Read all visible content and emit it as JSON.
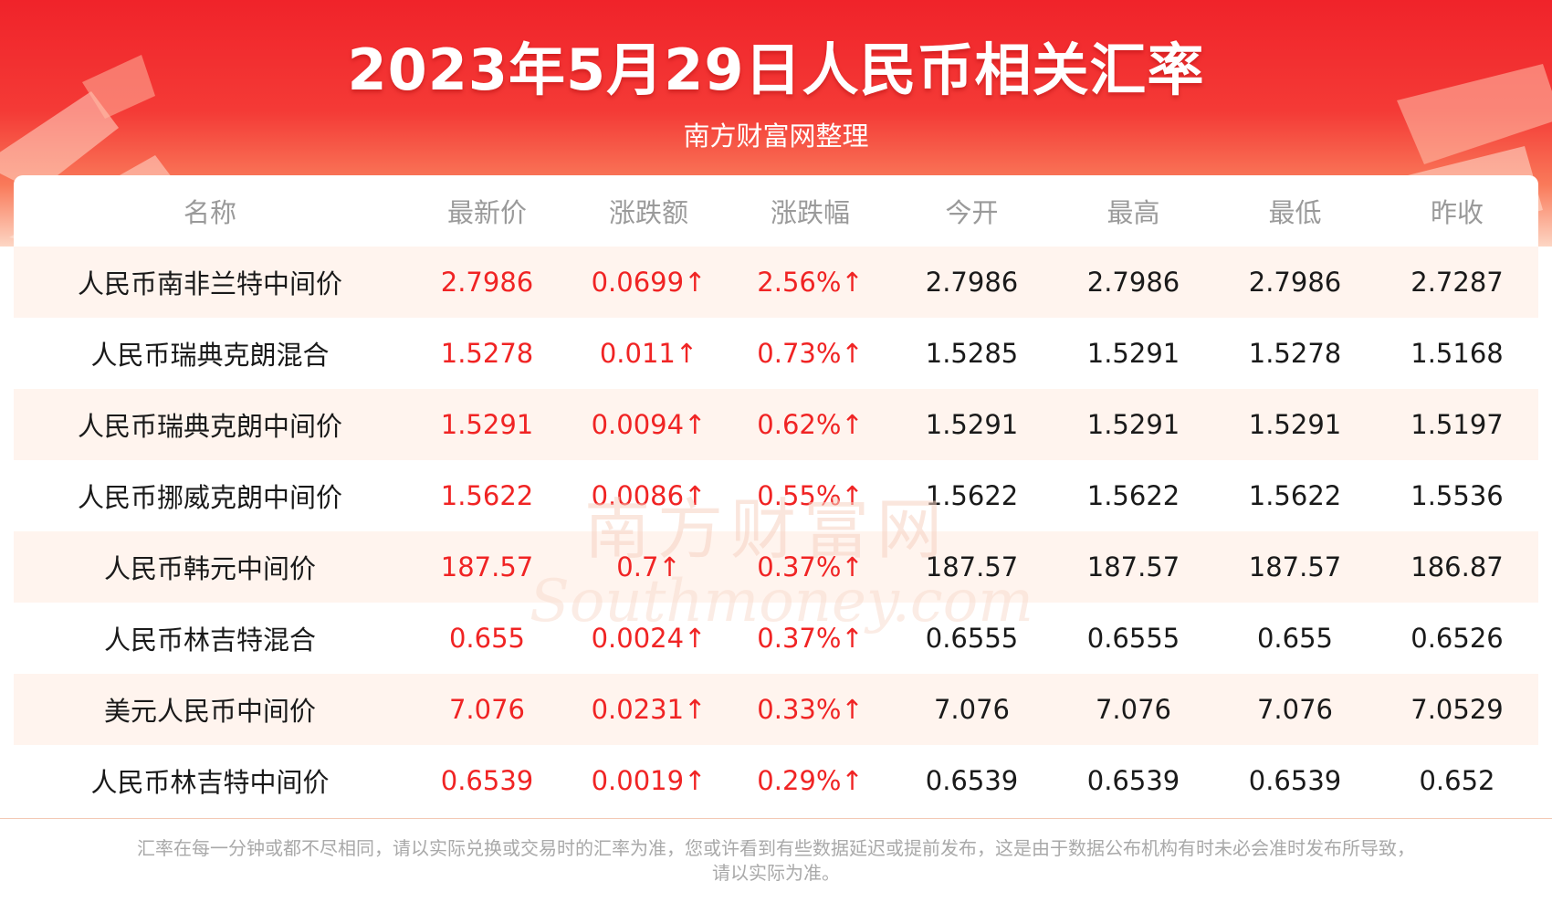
{
  "header": {
    "title": "2023年5月29日人民币相关汇率",
    "subtitle": "南方财富网整理"
  },
  "table": {
    "columns": [
      "名称",
      "最新价",
      "涨跌额",
      "涨跌幅",
      "今开",
      "最高",
      "最低",
      "昨收"
    ],
    "rows": [
      {
        "name": "人民币南非兰特中间价",
        "latest": "2.7986",
        "change": "0.0699↑",
        "pct": "2.56%↑",
        "open": "2.7986",
        "high": "2.7986",
        "low": "2.7986",
        "prev_close": "2.7287"
      },
      {
        "name": "人民币瑞典克朗混合",
        "latest": "1.5278",
        "change": "0.011↑",
        "pct": "0.73%↑",
        "open": "1.5285",
        "high": "1.5291",
        "low": "1.5278",
        "prev_close": "1.5168"
      },
      {
        "name": "人民币瑞典克朗中间价",
        "latest": "1.5291",
        "change": "0.0094↑",
        "pct": "0.62%↑",
        "open": "1.5291",
        "high": "1.5291",
        "low": "1.5291",
        "prev_close": "1.5197"
      },
      {
        "name": "人民币挪威克朗中间价",
        "latest": "1.5622",
        "change": "0.0086↑",
        "pct": "0.55%↑",
        "open": "1.5622",
        "high": "1.5622",
        "low": "1.5622",
        "prev_close": "1.5536"
      },
      {
        "name": "人民币韩元中间价",
        "latest": "187.57",
        "change": "0.7↑",
        "pct": "0.37%↑",
        "open": "187.57",
        "high": "187.57",
        "low": "187.57",
        "prev_close": "186.87"
      },
      {
        "name": "人民币林吉特混合",
        "latest": "0.655",
        "change": "0.0024↑",
        "pct": "0.37%↑",
        "open": "0.6555",
        "high": "0.6555",
        "low": "0.655",
        "prev_close": "0.6526"
      },
      {
        "name": "美元人民币中间价",
        "latest": "7.076",
        "change": "0.0231↑",
        "pct": "0.33%↑",
        "open": "7.076",
        "high": "7.076",
        "low": "7.076",
        "prev_close": "7.0529"
      },
      {
        "name": "人民币林吉特中间价",
        "latest": "0.6539",
        "change": "0.0019↑",
        "pct": "0.29%↑",
        "open": "0.6539",
        "high": "0.6539",
        "low": "0.6539",
        "prev_close": "0.652"
      }
    ]
  },
  "watermark": {
    "line1": "南方财富网",
    "line2": "Southmoney.com"
  },
  "footer": {
    "line1": "汇率在每一分钟或都不尽相同，请以实际兑换或交易时的汇率为准，您或许看到有些数据延迟或提前发布，这是由于数据公布机构有时未必会准时发布所导致，",
    "line2": "请以实际为准。"
  },
  "colors": {
    "header_red": "#f0232a",
    "up_red": "#f02424",
    "row_alt": "#fff4ee",
    "header_text_gray": "#9a9a9a"
  }
}
